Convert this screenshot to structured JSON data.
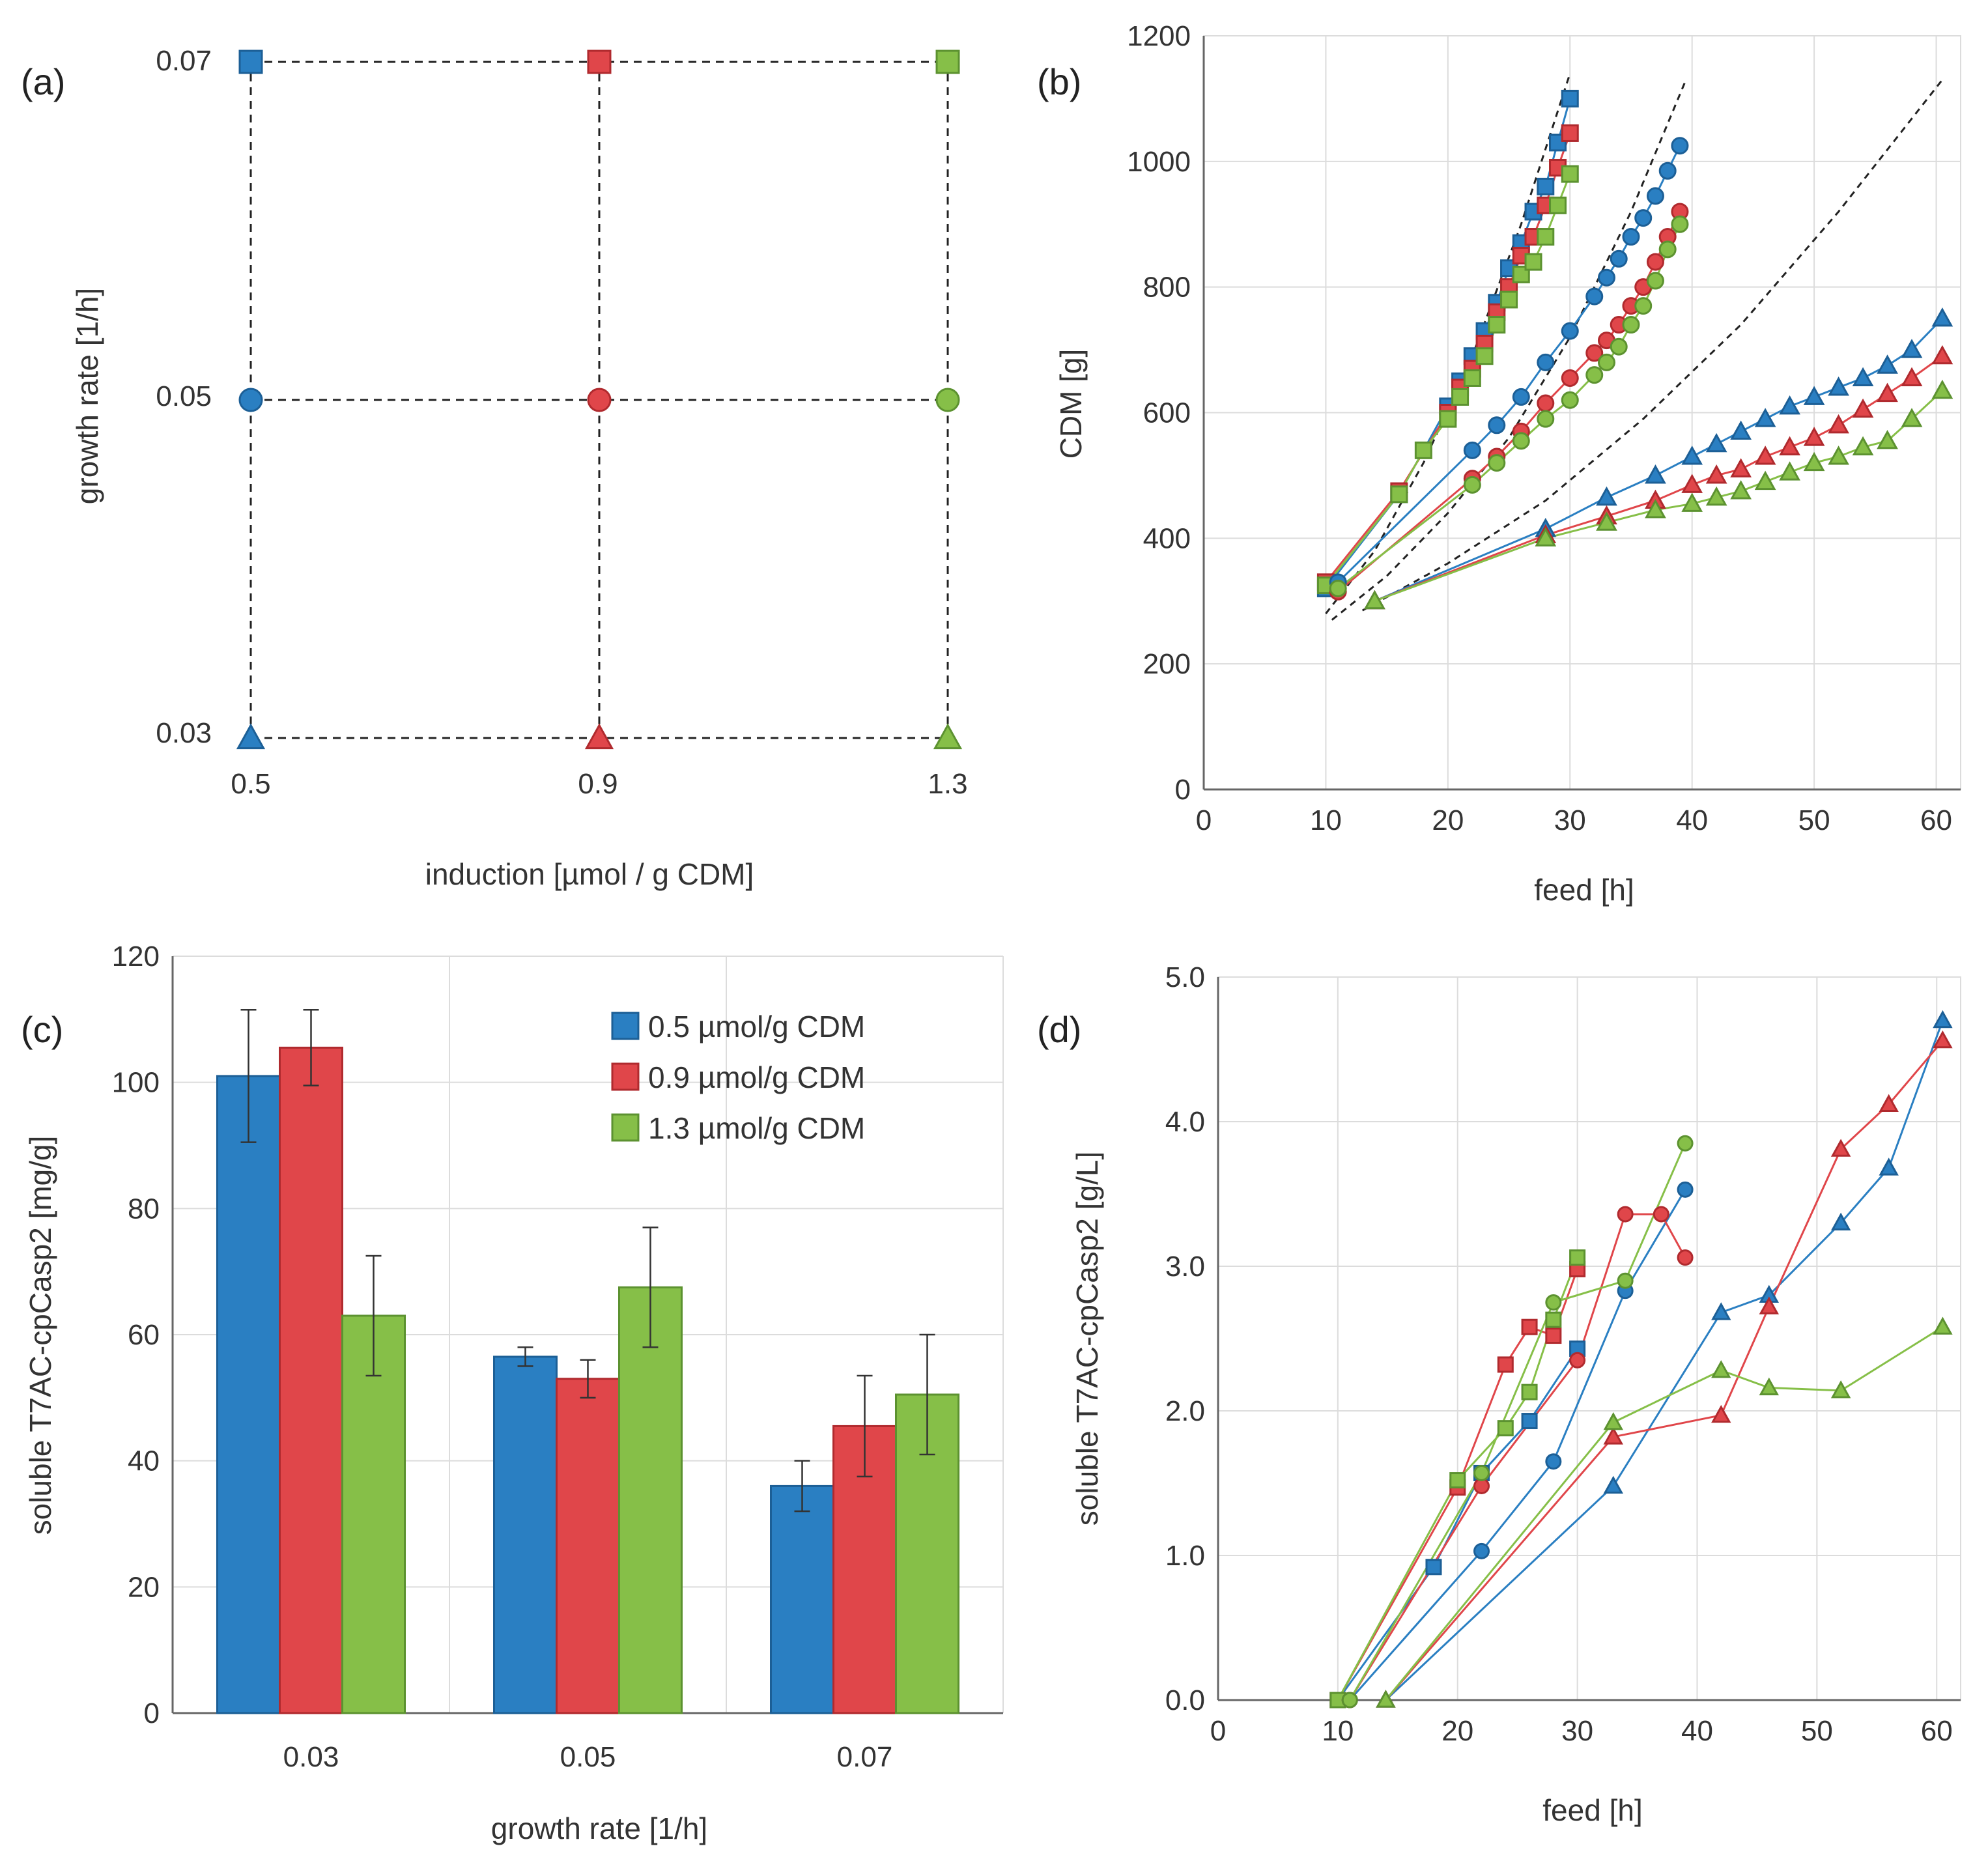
{
  "colors": {
    "blue": "#2a7fc2",
    "red": "#e0464a",
    "green": "#86bf48",
    "blue_edge": "#1c5f96",
    "red_edge": "#b02a2e",
    "green_edge": "#5c9230",
    "grid": "#dcdcdc",
    "axis": "#666666",
    "fit": "#222222"
  },
  "chart_data": [
    {
      "id": "a",
      "panel_label": "(a)",
      "type": "scatter",
      "title": "",
      "xlabel": "induction [µmol / g CDM]",
      "ylabel": "growth rate [1/h]",
      "x_ticks": [
        "0.5",
        "0.9",
        "1.3"
      ],
      "y_ticks": [
        "0.03",
        "0.05",
        "0.07"
      ],
      "x": [
        0.5,
        0.9,
        1.3
      ],
      "y": [
        0.03,
        0.05,
        0.07
      ],
      "grid_style": "dashed",
      "points": [
        {
          "x": 0.5,
          "y": 0.07,
          "color": "blue",
          "marker": "square"
        },
        {
          "x": 0.9,
          "y": 0.07,
          "color": "red",
          "marker": "square"
        },
        {
          "x": 1.3,
          "y": 0.07,
          "color": "green",
          "marker": "square"
        },
        {
          "x": 0.5,
          "y": 0.05,
          "color": "blue",
          "marker": "circle"
        },
        {
          "x": 0.9,
          "y": 0.05,
          "color": "red",
          "marker": "circle"
        },
        {
          "x": 1.3,
          "y": 0.05,
          "color": "green",
          "marker": "circle"
        },
        {
          "x": 0.5,
          "y": 0.03,
          "color": "blue",
          "marker": "triangle"
        },
        {
          "x": 0.9,
          "y": 0.03,
          "color": "red",
          "marker": "triangle"
        },
        {
          "x": 1.3,
          "y": 0.03,
          "color": "green",
          "marker": "triangle"
        }
      ]
    },
    {
      "id": "b",
      "panel_label": "(b)",
      "type": "line",
      "xlabel": "feed [h]",
      "ylabel": "CDM [g]",
      "xlim": [
        0,
        62
      ],
      "ylim": [
        0,
        1200
      ],
      "x_ticks": [
        0,
        10,
        20,
        30,
        40,
        50,
        60
      ],
      "y_ticks": [
        0,
        200,
        400,
        600,
        800,
        1000,
        1200
      ],
      "grid": true,
      "fits": [
        {
          "x": [
            10,
            14,
            18,
            22,
            26,
            30
          ],
          "y": [
            280,
            380,
            520,
            690,
            900,
            1140
          ]
        },
        {
          "x": [
            10.5,
            15,
            20,
            25,
            30,
            35,
            39.5
          ],
          "y": [
            270,
            340,
            440,
            560,
            720,
            920,
            1130
          ]
        },
        {
          "x": [
            13,
            20,
            28,
            36,
            44,
            52,
            60.5
          ],
          "y": [
            285,
            360,
            460,
            590,
            740,
            920,
            1130
          ]
        }
      ],
      "series": [
        {
          "name": "0.5 / 0.07",
          "color": "blue",
          "marker": "square",
          "x": [
            10,
            16,
            20,
            21,
            22,
            23,
            24,
            25,
            26,
            27,
            28,
            29,
            30
          ],
          "y": [
            320,
            470,
            610,
            650,
            690,
            730,
            775,
            830,
            870,
            920,
            960,
            1030,
            1100
          ]
        },
        {
          "name": "0.9 / 0.07",
          "color": "red",
          "marker": "square",
          "x": [
            10,
            16,
            20,
            21,
            22,
            23,
            24,
            25,
            26,
            27,
            28,
            29,
            30
          ],
          "y": [
            330,
            475,
            600,
            640,
            670,
            710,
            760,
            800,
            850,
            880,
            930,
            990,
            1045
          ]
        },
        {
          "name": "1.3 / 0.07",
          "color": "green",
          "marker": "square",
          "x": [
            10,
            16,
            18,
            20,
            21,
            22,
            23,
            24,
            25,
            26,
            27,
            28,
            29,
            30
          ],
          "y": [
            325,
            470,
            540,
            590,
            625,
            655,
            690,
            740,
            780,
            820,
            840,
            880,
            930,
            980
          ]
        },
        {
          "name": "0.5 / 0.05",
          "color": "blue",
          "marker": "circle",
          "x": [
            11,
            22,
            24,
            26,
            28,
            30,
            32,
            33,
            34,
            35,
            36,
            37,
            38,
            39
          ],
          "y": [
            330,
            540,
            580,
            625,
            680,
            730,
            785,
            815,
            845,
            880,
            910,
            945,
            985,
            1025
          ]
        },
        {
          "name": "0.9 / 0.05",
          "color": "red",
          "marker": "circle",
          "x": [
            11,
            22,
            24,
            26,
            28,
            30,
            32,
            33,
            34,
            35,
            36,
            37,
            38,
            39
          ],
          "y": [
            315,
            495,
            530,
            570,
            615,
            655,
            695,
            715,
            740,
            770,
            800,
            840,
            880,
            920
          ]
        },
        {
          "name": "1.3 / 0.05",
          "color": "green",
          "marker": "circle",
          "x": [
            11,
            22,
            24,
            26,
            28,
            30,
            32,
            33,
            34,
            35,
            36,
            37,
            38,
            39
          ],
          "y": [
            320,
            485,
            520,
            555,
            590,
            620,
            660,
            680,
            705,
            740,
            770,
            810,
            860,
            900
          ]
        },
        {
          "name": "0.5 / 0.03",
          "color": "blue",
          "marker": "triangle",
          "x": [
            14,
            28,
            33,
            37,
            40,
            42,
            44,
            46,
            48,
            50,
            52,
            54,
            56,
            58,
            60.5
          ],
          "y": [
            300,
            415,
            465,
            500,
            530,
            550,
            570,
            590,
            610,
            625,
            640,
            655,
            675,
            700,
            750
          ]
        },
        {
          "name": "0.9 / 0.03",
          "color": "red",
          "marker": "triangle",
          "x": [
            14,
            28,
            33,
            37,
            40,
            42,
            44,
            46,
            48,
            50,
            52,
            54,
            56,
            58,
            60.5
          ],
          "y": [
            300,
            405,
            435,
            460,
            485,
            500,
            510,
            530,
            545,
            560,
            580,
            605,
            630,
            655,
            690
          ]
        },
        {
          "name": "1.3 / 0.03",
          "color": "green",
          "marker": "triangle",
          "x": [
            14,
            28,
            33,
            37,
            40,
            42,
            44,
            46,
            48,
            50,
            52,
            54,
            56,
            58,
            60.5
          ],
          "y": [
            300,
            400,
            425,
            445,
            455,
            465,
            475,
            490,
            505,
            520,
            530,
            545,
            555,
            590,
            635
          ]
        }
      ]
    },
    {
      "id": "c",
      "panel_label": "(c)",
      "type": "bar",
      "xlabel": "growth rate [1/h]",
      "ylabel": "soluble T7AC-cpCasp2 [mg/g]",
      "ylim": [
        0,
        120
      ],
      "y_ticks": [
        0,
        20,
        40,
        60,
        80,
        100,
        120
      ],
      "categories": [
        "0.03",
        "0.05",
        "0.07"
      ],
      "legend_position": "top-right",
      "series": [
        {
          "name": "0.5 µmol/g CDM",
          "color": "blue",
          "values": [
            101,
            56.5,
            36
          ],
          "errors": [
            10.5,
            1.5,
            4
          ]
        },
        {
          "name": "0.9 µmol/g CDM",
          "color": "red",
          "values": [
            105.5,
            53,
            45.5
          ],
          "errors": [
            6,
            3,
            8
          ]
        },
        {
          "name": "1.3 µmol/g CDM",
          "color": "green",
          "values": [
            63,
            67.5,
            50.5
          ],
          "errors": [
            9.5,
            9.5,
            9.5
          ]
        }
      ]
    },
    {
      "id": "d",
      "panel_label": "(d)",
      "type": "line",
      "xlabel": "feed [h]",
      "ylabel": "soluble T7AC-cpCasp2 [g/L]",
      "xlim": [
        0,
        62
      ],
      "ylim": [
        0,
        5
      ],
      "x_ticks": [
        0,
        10,
        20,
        30,
        40,
        50,
        60
      ],
      "y_ticks": [
        "0.0",
        "1.0",
        "2.0",
        "3.0",
        "4.0",
        "5.0"
      ],
      "grid": true,
      "series": [
        {
          "name": "0.5 / 0.07",
          "color": "blue",
          "marker": "square",
          "x": [
            10,
            18,
            22,
            26,
            30
          ],
          "y": [
            0,
            0.92,
            1.57,
            1.93,
            2.43
          ]
        },
        {
          "name": "0.9 / 0.07",
          "color": "red",
          "marker": "square",
          "x": [
            10,
            20,
            24,
            26,
            28,
            30
          ],
          "y": [
            0,
            1.47,
            2.32,
            2.58,
            2.52,
            2.98
          ]
        },
        {
          "name": "1.3 / 0.07",
          "color": "green",
          "marker": "square",
          "x": [
            10,
            20,
            24,
            26,
            28,
            30
          ],
          "y": [
            0,
            1.52,
            1.88,
            2.13,
            2.63,
            3.06
          ]
        },
        {
          "name": "0.5 / 0.05",
          "color": "blue",
          "marker": "circle",
          "x": [
            11,
            22,
            28,
            34,
            39
          ],
          "y": [
            0,
            1.03,
            1.65,
            2.83,
            3.53
          ]
        },
        {
          "name": "0.9 / 0.05",
          "color": "red",
          "marker": "circle",
          "x": [
            11,
            22,
            30,
            34,
            37,
            39
          ],
          "y": [
            0,
            1.48,
            2.35,
            3.36,
            3.36,
            3.06
          ]
        },
        {
          "name": "1.3 / 0.05",
          "color": "green",
          "marker": "circle",
          "x": [
            11,
            22,
            28,
            34,
            39
          ],
          "y": [
            0,
            1.57,
            2.75,
            2.9,
            3.85
          ]
        },
        {
          "name": "0.5 / 0.03",
          "color": "blue",
          "marker": "triangle",
          "x": [
            14,
            33,
            42,
            46,
            52,
            56,
            60.5
          ],
          "y": [
            0,
            1.48,
            2.68,
            2.8,
            3.3,
            3.68,
            4.7
          ]
        },
        {
          "name": "0.9 / 0.03",
          "color": "red",
          "marker": "triangle",
          "x": [
            14,
            33,
            42,
            46,
            52,
            56,
            60.5
          ],
          "y": [
            0,
            1.82,
            1.97,
            2.72,
            3.81,
            4.12,
            4.56
          ]
        },
        {
          "name": "1.3 / 0.03",
          "color": "green",
          "marker": "triangle",
          "x": [
            14,
            33,
            42,
            46,
            52,
            60.5
          ],
          "y": [
            0,
            1.92,
            2.28,
            2.16,
            2.14,
            2.58
          ]
        }
      ]
    }
  ]
}
